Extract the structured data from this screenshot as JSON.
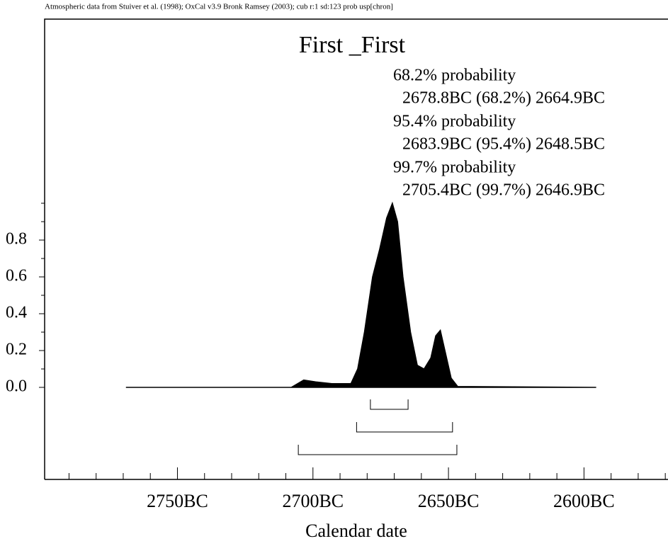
{
  "chart_data": {
    "type": "area",
    "header": "Atmospheric data from Stuiver et al. (1998); OxCal v3.9 Bronk Ramsey (2003); cub r:1 sd:123 prob usp[chron]",
    "title": "First _First",
    "xlabel": "Calendar date",
    "color": "#000000",
    "x": [
      2769,
      2708,
      2703.4,
      2699,
      2693,
      2686,
      2683.5,
      2681,
      2678,
      2675.4,
      2672.8,
      2670.7,
      2668.8,
      2666.8,
      2664,
      2661.5,
      2659,
      2656.5,
      2654.7,
      2653,
      2651.3,
      2649,
      2646.6,
      2595.5
    ],
    "values": [
      0,
      0,
      0.04,
      0.03,
      0.02,
      0.02,
      0.1,
      0.3,
      0.6,
      0.75,
      0.92,
      1.0,
      0.9,
      0.6,
      0.3,
      0.12,
      0.1,
      0.16,
      0.28,
      0.31,
      0.2,
      0.05,
      0.005,
      0
    ],
    "xlim": [
      2799,
      2569
    ],
    "ylim": [
      -0.5,
      2.0
    ],
    "xticks": [
      {
        "value": 2750,
        "label": "2750BC"
      },
      {
        "value": 2700,
        "label": "2700BC"
      },
      {
        "value": 2650,
        "label": "2650BC"
      },
      {
        "value": 2600,
        "label": "2600BC"
      }
    ],
    "xminorticks": [
      2790,
      2780,
      2770,
      2760,
      2740,
      2730,
      2720,
      2710,
      2690,
      2680,
      2670,
      2660,
      2640,
      2630,
      2620,
      2610,
      2590,
      2580,
      2570
    ],
    "yticks": [
      {
        "value": 0,
        "label": "0.0"
      },
      {
        "value": 0.2,
        "label": "0.2"
      },
      {
        "value": 0.4,
        "label": "0.4"
      },
      {
        "value": 0.6,
        "label": "0.6"
      },
      {
        "value": 0.8,
        "label": "0.8"
      }
    ],
    "yminorticks": [
      0.1,
      0.3,
      0.5,
      0.7,
      0.9,
      1.0
    ],
    "ranges": [
      {
        "level": "68.2% probability",
        "range_text": "2678.8BC (68.2%) 2664.9BC",
        "from": 2678.8,
        "to": 2664.9
      },
      {
        "level": "95.4% probability",
        "range_text": "2683.9BC (95.4%) 2648.5BC",
        "from": 2683.9,
        "to": 2648.5
      },
      {
        "level": "99.7% probability",
        "range_text": "2705.4BC (99.7%) 2646.9BC",
        "from": 2705.4,
        "to": 2646.9
      }
    ]
  }
}
